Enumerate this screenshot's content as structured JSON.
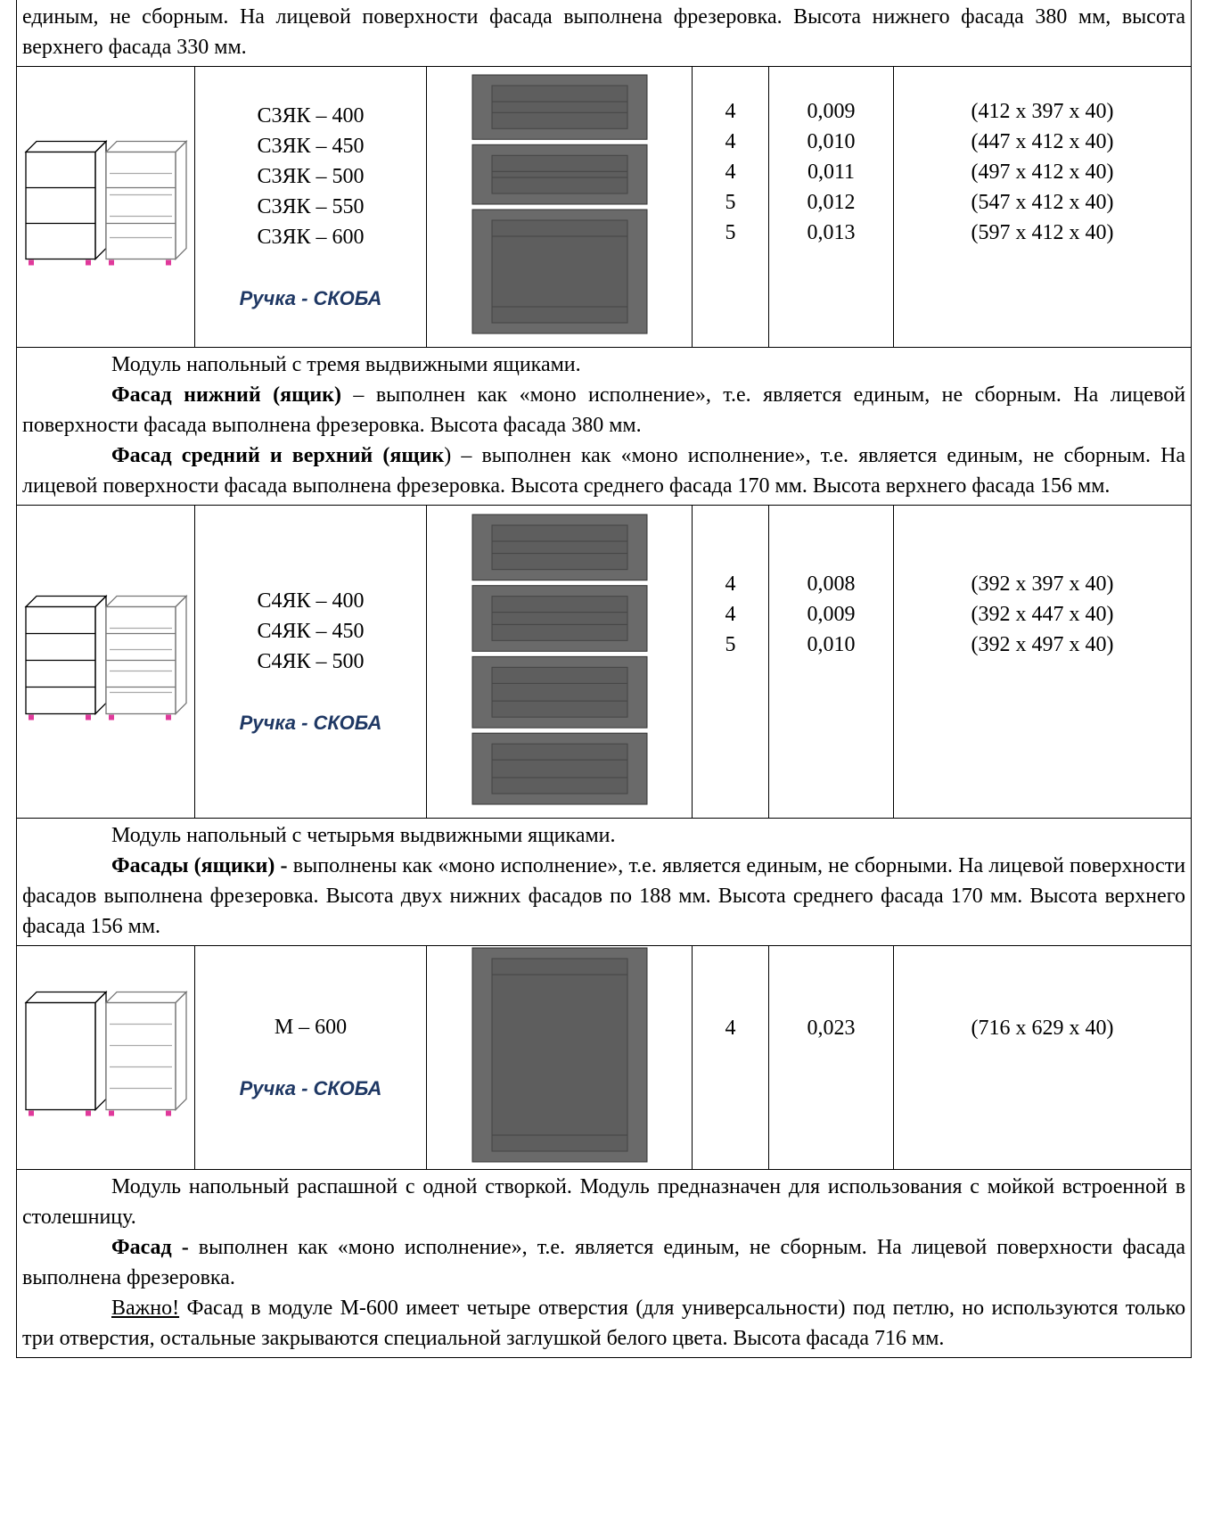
{
  "intro": "единым, не сборным. На лицевой поверхности фасада выполнена фрезеровка. Высота нижнего фасада 380 мм, высота верхнего фасада 330 мм.",
  "blocks": [
    {
      "models": [
        "С3ЯК – 400",
        "С3ЯК – 450",
        "С3ЯК – 500",
        "С3ЯК – 550",
        "С3ЯК – 600"
      ],
      "handle": "Ручка - СКОБА",
      "packages": [
        "4",
        "4",
        "4",
        "5",
        "5"
      ],
      "volumes": [
        "0,009",
        "0,010",
        "0,011",
        "0,012",
        "0,013"
      ],
      "dimensions": [
        "(412 х 397 х 40)",
        "(447 х 412 х 40)",
        "(497 х 412 х 40)",
        "(547 х 412 х 40)",
        "(597 х 412 х 40)"
      ],
      "description": [
        {
          "text": "Модуль напольный с тремя выдвижными ящиками."
        },
        {
          "bold": "Фасад нижний (ящик)",
          "text": " – выполнен как «моно исполнение», т.е. является единым, не сборным. На лицевой поверхности фасада выполнена фрезеровка. Высота фасада 380 мм."
        },
        {
          "bold": "Фасад средний и верхний (ящик",
          "text": ") – выполнен как «моно исполнение», т.е. является единым, не сборным. На лицевой поверхности фасада выполнена фрезеровка. Высота среднего фасада 170 мм. Высота верхнего фасада 156 мм."
        }
      ]
    },
    {
      "models": [
        "С4ЯК – 400",
        "С4ЯК – 450",
        "С4ЯК – 500"
      ],
      "handle": "Ручка - СКОБА",
      "packages": [
        "4",
        "4",
        "5"
      ],
      "volumes": [
        "0,008",
        "0,009",
        "0,010"
      ],
      "dimensions": [
        "(392 х 397 х 40)",
        "(392 х 447 х 40)",
        "(392 х 497 х 40)"
      ],
      "description": [
        {
          "text": "Модуль напольный с четырьмя выдвижными ящиками."
        },
        {
          "bold": "Фасады (ящики) -",
          "text": " выполнены как «моно исполнение», т.е. является единым, не сборными. На лицевой поверхности фасадов выполнена фрезеровка. Высота двух нижних фасадов по 188 мм. Высота среднего фасада 170 мм. Высота верхнего фасада 156 мм."
        }
      ]
    },
    {
      "models": [
        "М – 600"
      ],
      "handle": "Ручка - СКОБА",
      "packages": [
        "4"
      ],
      "volumes": [
        "0,023"
      ],
      "dimensions": [
        "(716 х 629 х 40)"
      ],
      "description": [
        {
          "text": "Модуль напольный распашной с одной створкой. Модуль предназначен для использования с мойкой встроенной в столешницу."
        },
        {
          "bold": "Фасад -",
          "text": " выполнен как «моно исполнение», т.е. является единым, не сборным. На лицевой поверхности фасада выполнена фрезеровка."
        },
        {
          "underline": "Важно!",
          "text": " Фасад в модуле М-600 имеет четыре отверстия (для универсальности) под петлю, но используются только три отверстия, остальные закрываются специальной заглушкой белого цвета. Высота фасада 716 мм."
        }
      ]
    }
  ]
}
